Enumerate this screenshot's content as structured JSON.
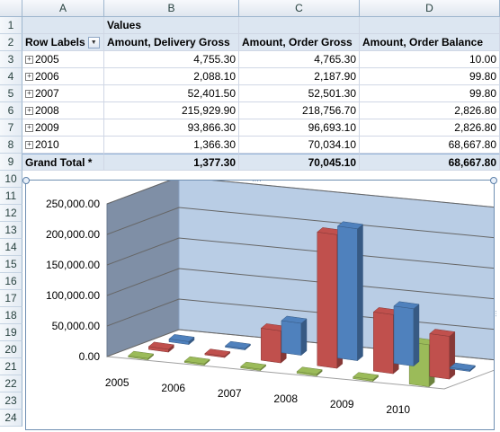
{
  "columns": [
    "A",
    "B",
    "C",
    "D"
  ],
  "rows": [
    "1",
    "2",
    "3",
    "4",
    "5",
    "6",
    "7",
    "8",
    "9",
    "10",
    "11",
    "12",
    "13",
    "14",
    "15",
    "16",
    "17",
    "18",
    "19",
    "20",
    "21",
    "22",
    "23",
    "24"
  ],
  "pivot": {
    "values_label": "Values",
    "row_labels": "Row Labels",
    "headers": [
      "Amount, Delivery Gross",
      "Amount, Order Gross",
      "Amount, Order Balance"
    ],
    "data": [
      {
        "year": "2005",
        "delivery": "4,755.30",
        "order": "4,765.30",
        "balance": "10.00"
      },
      {
        "year": "2006",
        "delivery": "2,088.10",
        "order": "2,187.90",
        "balance": "99.80"
      },
      {
        "year": "2007",
        "delivery": "52,401.50",
        "order": "52,501.30",
        "balance": "99.80"
      },
      {
        "year": "2008",
        "delivery": "215,929.90",
        "order": "218,756.70",
        "balance": "2,826.80"
      },
      {
        "year": "2009",
        "delivery": "93,866.30",
        "order": "96,693.10",
        "balance": "2,826.80"
      },
      {
        "year": "2010",
        "delivery": "1,366.30",
        "order": "70,034.10",
        "balance": "68,667.80"
      }
    ],
    "total": {
      "label": "Grand Total *",
      "delivery": "1,377.30",
      "order": "70,045.10",
      "balance": "68,667.80"
    }
  },
  "chart_data": {
    "type": "bar",
    "categories": [
      "2005",
      "2006",
      "2007",
      "2008",
      "2009",
      "2010"
    ],
    "y_ticks": [
      "0.00",
      "50,000.00",
      "100,000.00",
      "150,000.00",
      "200,000.00",
      "250,000.00"
    ],
    "ylim": [
      0,
      250000
    ],
    "series": [
      {
        "values": [
          4755.3,
          2088.1,
          52401.5,
          215929.9,
          93866.3,
          1366.3
        ],
        "color": "#4f81bd"
      },
      {
        "values": [
          4765.3,
          2187.9,
          52501.3,
          218756.7,
          96693.1,
          70034.1
        ],
        "color": "#c0504d"
      },
      {
        "values": [
          10.0,
          99.8,
          99.8,
          2826.8,
          2826.8,
          68667.8
        ],
        "color": "#9bbb59"
      }
    ],
    "grid": true,
    "legend": "none"
  }
}
